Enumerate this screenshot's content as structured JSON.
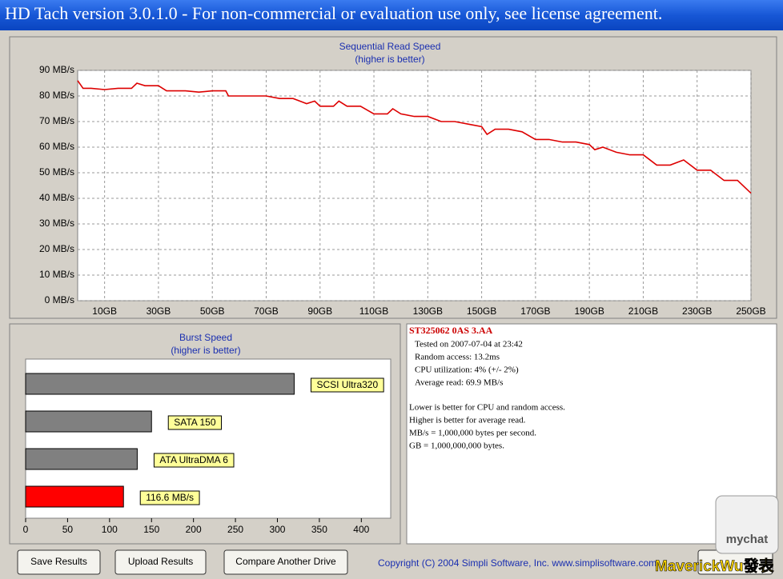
{
  "window_title": "HD Tach version 3.0.1.0  - For non-commercial or evaluation use only, see license agreement.",
  "chart_data": [
    {
      "type": "line",
      "title": "Sequential Read Speed",
      "subtitle": "(higher is better)",
      "color": "#dd0000",
      "grid": true,
      "x": [
        0,
        2,
        5,
        10,
        15,
        20,
        22,
        25,
        30,
        33,
        35,
        40,
        45,
        50,
        55,
        56,
        60,
        65,
        70,
        75,
        80,
        85,
        88,
        90,
        95,
        97,
        100,
        105,
        110,
        115,
        117,
        120,
        125,
        130,
        135,
        140,
        145,
        150,
        152,
        155,
        160,
        165,
        170,
        175,
        180,
        185,
        190,
        192,
        195,
        200,
        205,
        210,
        215,
        220,
        225,
        230,
        235,
        240,
        245,
        250
      ],
      "values": [
        86,
        83,
        83,
        82.5,
        83,
        83,
        85,
        84,
        84,
        82,
        82,
        82,
        81.5,
        82,
        82,
        80,
        80,
        80,
        80,
        79,
        79,
        77,
        78,
        76,
        76,
        78,
        76,
        76,
        73,
        73,
        75,
        73,
        72,
        72,
        70,
        70,
        69,
        68,
        65,
        67,
        67,
        66,
        63,
        63,
        62,
        62,
        61,
        59,
        60,
        58,
        57,
        57,
        53,
        53,
        55,
        51,
        51,
        47,
        47,
        42
      ],
      "xlim": [
        0,
        250
      ],
      "ylim": [
        0,
        90
      ],
      "xticks": [
        {
          "value": 10,
          "label": "10GB"
        },
        {
          "value": 30,
          "label": "30GB"
        },
        {
          "value": 50,
          "label": "50GB"
        },
        {
          "value": 70,
          "label": "70GB"
        },
        {
          "value": 90,
          "label": "90GB"
        },
        {
          "value": 110,
          "label": "110GB"
        },
        {
          "value": 130,
          "label": "130GB"
        },
        {
          "value": 150,
          "label": "150GB"
        },
        {
          "value": 170,
          "label": "170GB"
        },
        {
          "value": 190,
          "label": "190GB"
        },
        {
          "value": 210,
          "label": "210GB"
        },
        {
          "value": 230,
          "label": "230GB"
        },
        {
          "value": 250,
          "label": "250GB"
        }
      ],
      "yticks": [
        {
          "value": 0,
          "label": "0 MB/s"
        },
        {
          "value": 10,
          "label": "10 MB/s"
        },
        {
          "value": 20,
          "label": "20 MB/s"
        },
        {
          "value": 30,
          "label": "30 MB/s"
        },
        {
          "value": 40,
          "label": "40 MB/s"
        },
        {
          "value": 50,
          "label": "50 MB/s"
        },
        {
          "value": 60,
          "label": "60 MB/s"
        },
        {
          "value": 70,
          "label": "70 MB/s"
        },
        {
          "value": 80,
          "label": "80 MB/s"
        },
        {
          "value": 90,
          "label": "90 MB/s"
        }
      ]
    },
    {
      "type": "barh",
      "title": "Burst Speed",
      "subtitle": "(higher is better)",
      "categories": [
        "SCSI Ultra320",
        "SATA 150",
        "ATA UltraDMA 6",
        null
      ],
      "values": [
        320,
        150,
        133,
        116.6
      ],
      "value_labels": [
        null,
        null,
        null,
        "116.6 MB/s"
      ],
      "colors": [
        "#808080",
        "#808080",
        "#808080",
        "#ff0000"
      ],
      "xlim": [
        0,
        435
      ],
      "xticks": [
        0,
        50,
        100,
        150,
        200,
        250,
        300,
        350,
        400
      ]
    }
  ],
  "info": {
    "drive": "ST325062 0AS 3.AA",
    "details": [
      "Tested on 2007-07-04 at 23:42",
      "Random access: 13.2ms",
      "CPU utilization: 4% (+/- 2%)",
      "Average read: 69.9 MB/s"
    ],
    "notes": [
      "Lower is better for CPU and random access.",
      "Higher is better for average read.",
      "MB/s = 1,000,000 bytes per second.",
      "GB = 1,000,000,000 bytes."
    ]
  },
  "buttons": [
    "Save Results",
    "Upload Results",
    "Compare Another Drive"
  ],
  "copyright": "Copyright (C) 2004 Simpli Software, Inc. www.simplisoftware.com",
  "watermark": {
    "logo": "mychat",
    "author": "MaverickWu發表"
  }
}
